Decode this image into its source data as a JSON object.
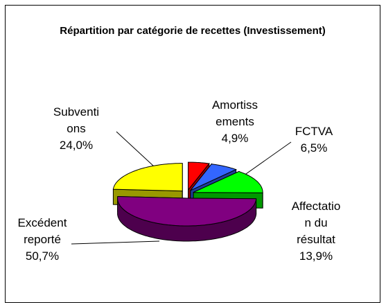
{
  "chart_data": {
    "type": "pie",
    "title": "Répartition par catégorie de recettes (Investissement)",
    "categories": [
      "Amortissements",
      "FCTVA",
      "Affectation du résultat",
      "Excédent reporté",
      "Subventions"
    ],
    "values": [
      4.9,
      6.5,
      13.9,
      50.7,
      24.0
    ],
    "value_labels": [
      "4,9%",
      "6,5%",
      "13,9%",
      "50,7%",
      "24,0%"
    ],
    "colors": [
      "#ff0000",
      "#3366ff",
      "#00ff00",
      "#800080",
      "#ffff00"
    ]
  }
}
